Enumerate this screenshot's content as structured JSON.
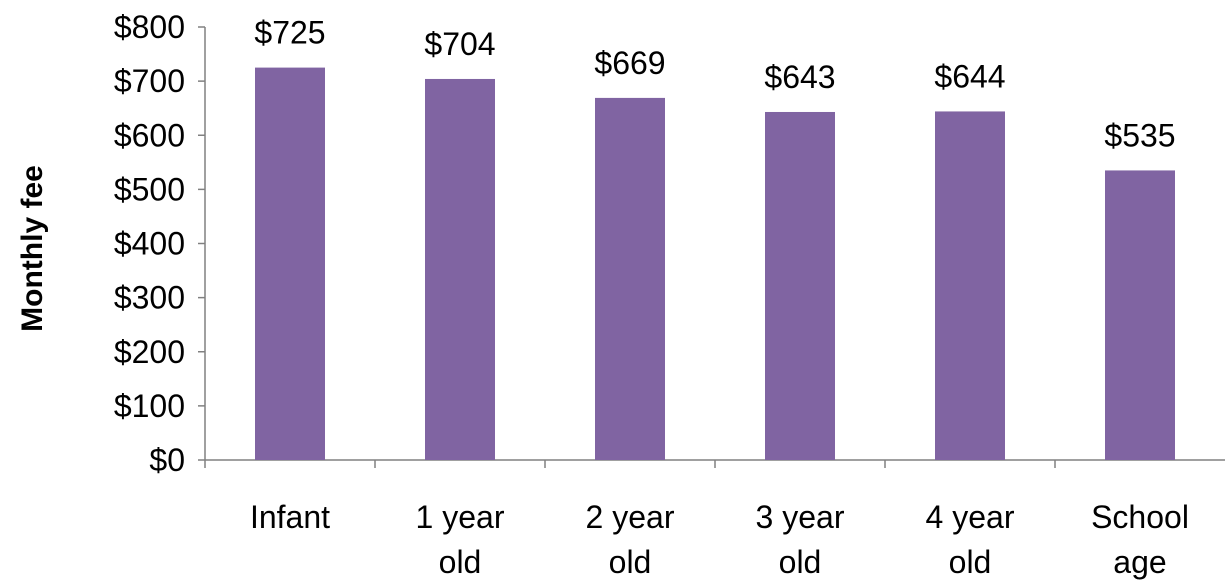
{
  "chart_data": {
    "type": "bar",
    "title": "",
    "xlabel": "",
    "ylabel": "Monthly fee",
    "categories": [
      [
        "Infant"
      ],
      [
        "1 year",
        "old"
      ],
      [
        "2 year",
        "old"
      ],
      [
        "3 year",
        "old"
      ],
      [
        "4 year",
        "old"
      ],
      [
        "School",
        "age"
      ]
    ],
    "values": [
      725,
      704,
      669,
      643,
      644,
      535
    ],
    "value_labels": [
      "$725",
      "$704",
      "$669",
      "$643",
      "$644",
      "$535"
    ],
    "yticks": [
      0,
      100,
      200,
      300,
      400,
      500,
      600,
      700,
      800
    ],
    "ytick_labels": [
      "$0",
      "$100",
      "$200",
      "$300",
      "$400",
      "$500",
      "$600",
      "$700",
      "$800"
    ],
    "ylim": [
      0,
      800
    ],
    "grid": false,
    "legend": "none",
    "bar_color": "#8064a2"
  }
}
